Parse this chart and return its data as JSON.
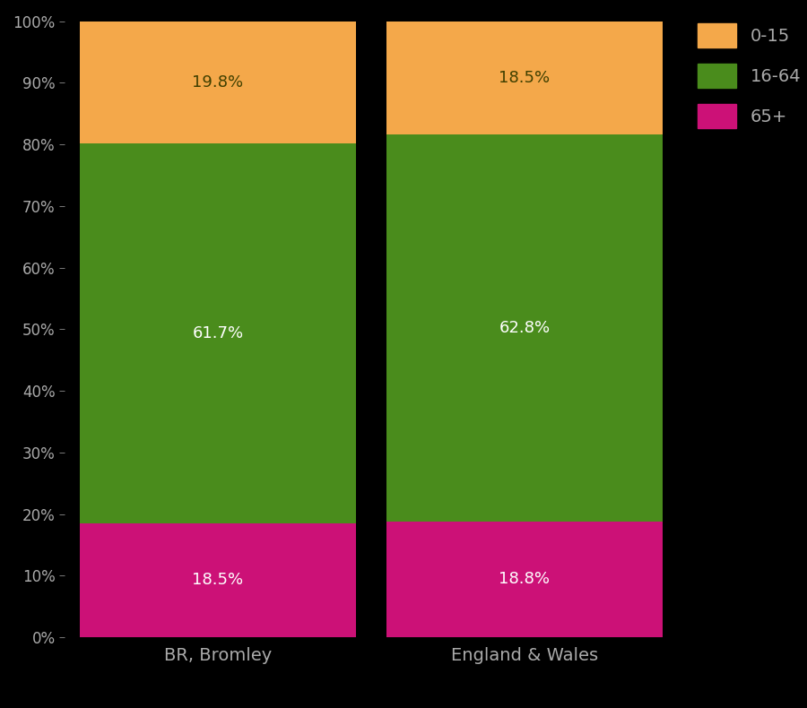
{
  "categories": [
    "BR, Bromley",
    "England & Wales"
  ],
  "segments": {
    "65+": [
      18.5,
      18.8
    ],
    "16-64": [
      61.7,
      62.8
    ],
    "0-15": [
      19.8,
      18.5
    ]
  },
  "colors": {
    "65+": "#CC1177",
    "16-64": "#4a8c1c",
    "0-15": "#f4a84a"
  },
  "label_text_color": {
    "65+": "#ffffff",
    "16-64": "#ffffff",
    "0-15": "#404000"
  },
  "background_color": "#000000",
  "tick_label_color": "#aaaaaa",
  "bar_width": 0.9,
  "ylim": [
    0,
    100
  ],
  "yticks": [
    0,
    10,
    20,
    30,
    40,
    50,
    60,
    70,
    80,
    90,
    100
  ],
  "ytick_labels": [
    "0%",
    "10%",
    "20%",
    "30%",
    "40%",
    "50%",
    "60%",
    "70%",
    "80%",
    "90%",
    "100%"
  ],
  "figsize": [
    9.0,
    7.9
  ],
  "dpi": 100
}
